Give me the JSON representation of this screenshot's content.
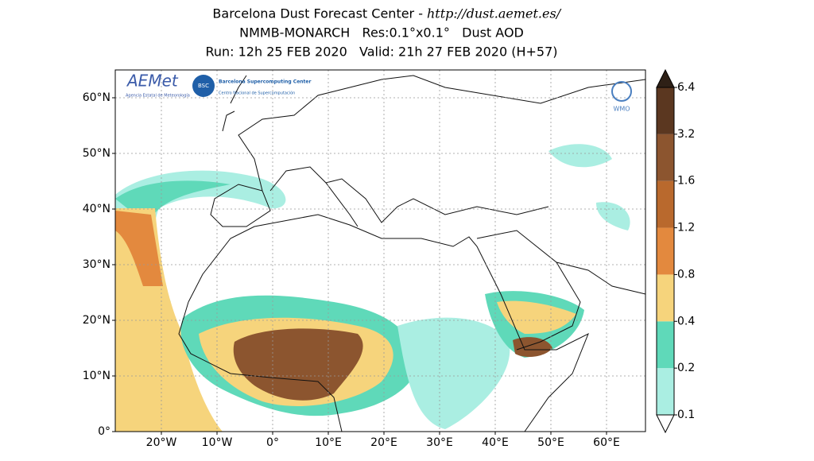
{
  "header": {
    "title_text": "Barcelona Dust Forecast Center -",
    "title_url": "http://dust.aemet.es/",
    "model_line": "NMMB-MONARCH   Res:0.1°x0.1°   Dust AOD",
    "run_line": "Run: 12h 25 FEB 2020   Valid: 21h 27 FEB 2020 (H+57)"
  },
  "map": {
    "lat_ticks": [
      {
        "value": 0,
        "label": "0°"
      },
      {
        "value": 10,
        "label": "10°N"
      },
      {
        "value": 20,
        "label": "20°N"
      },
      {
        "value": 30,
        "label": "30°N"
      },
      {
        "value": 40,
        "label": "40°N"
      },
      {
        "value": 50,
        "label": "50°N"
      },
      {
        "value": 60,
        "label": "60°N"
      }
    ],
    "lon_ticks": [
      {
        "value": -20,
        "label": "20°W"
      },
      {
        "value": -10,
        "label": "10°W"
      },
      {
        "value": 0,
        "label": "0°"
      },
      {
        "value": 10,
        "label": "10°E"
      },
      {
        "value": 20,
        "label": "20°E"
      },
      {
        "value": 30,
        "label": "30°E"
      },
      {
        "value": 40,
        "label": "40°E"
      },
      {
        "value": 50,
        "label": "50°E"
      },
      {
        "value": 60,
        "label": "60°E"
      }
    ],
    "grid": true
  },
  "colorbar": {
    "levels": [
      0.1,
      0.2,
      0.4,
      0.8,
      1.2,
      1.6,
      3.2,
      6.4
    ],
    "colors": [
      "#aaeee2",
      "#5fd9b9",
      "#f6d47c",
      "#e3893e",
      "#b9692d",
      "#8c552f",
      "#5b3720"
    ],
    "over_color": "#2e2016",
    "under_color": "#ffffff"
  },
  "logos": {
    "aemet": "AEMet",
    "aemet_sub": "Agencia Estatal de Meteorología",
    "bsc": "BSC",
    "bsc_name": "Barcelona Supercomputing Center",
    "bsc_sub": "Centro Nacional de Supercomputación",
    "wmo": "WMO"
  }
}
